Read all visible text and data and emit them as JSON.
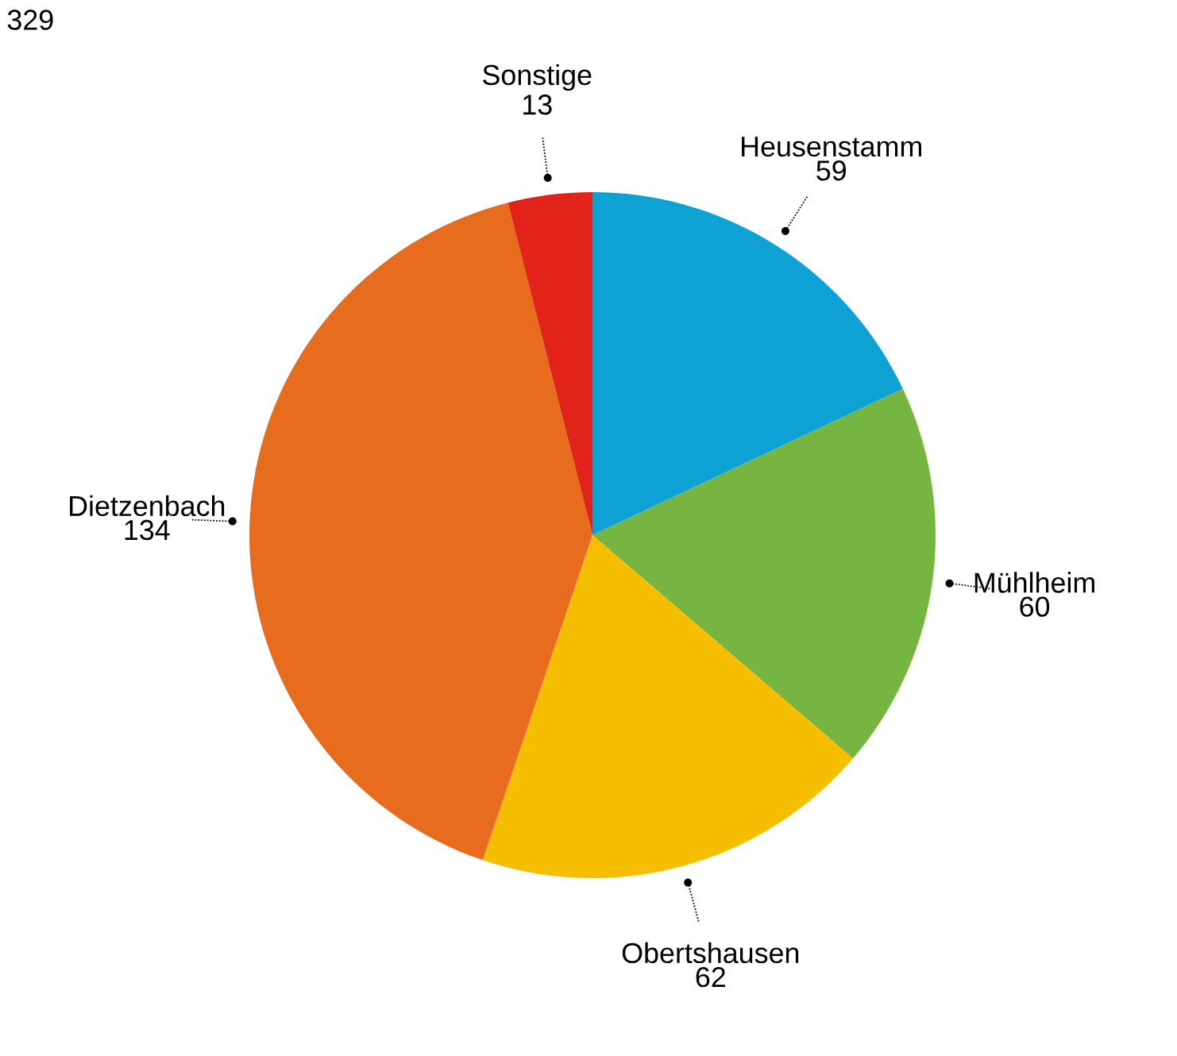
{
  "chart_data": {
    "type": "pie",
    "categories": [
      "Heusenstamm",
      "Mühlheim",
      "Obertshausen",
      "Dietzenbach",
      "Sonstige"
    ],
    "values": [
      59,
      60,
      62,
      134,
      13
    ],
    "colors": [
      "#0ea1d4",
      "#77b543",
      "#f5bf00",
      "#e86c1e",
      "#e2231a"
    ],
    "data_labels": true,
    "annotations": [
      "329"
    ]
  }
}
